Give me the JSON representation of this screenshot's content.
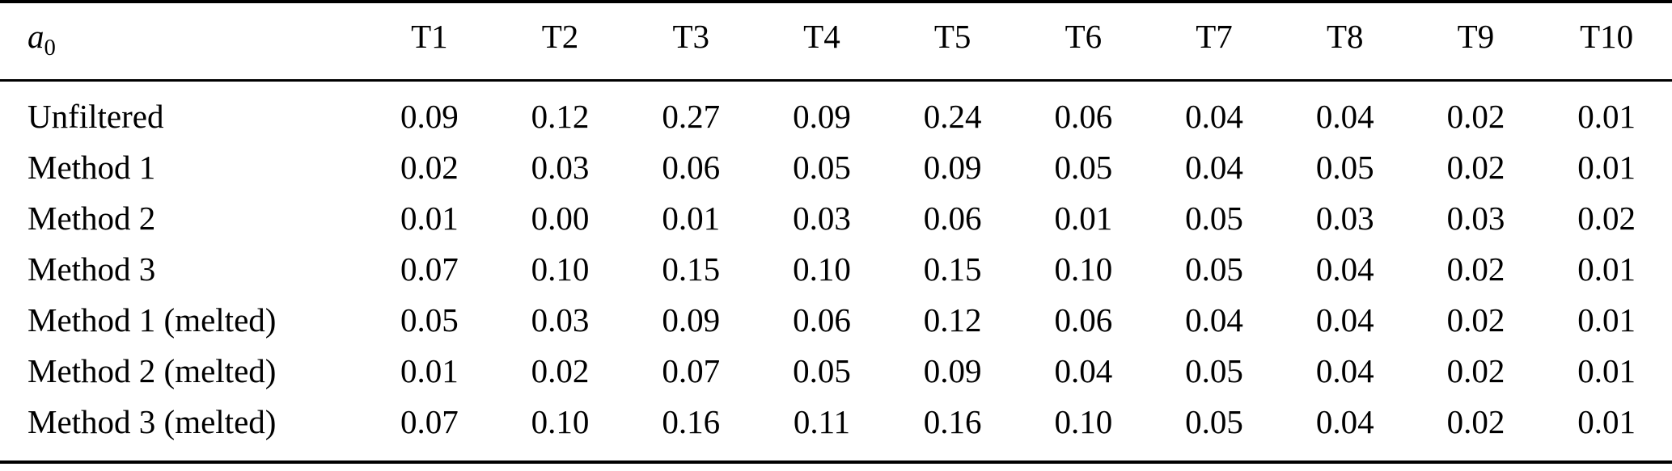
{
  "page": {
    "background_color": "#ffffff",
    "text_color": "#000000",
    "rule_color": "#000000"
  },
  "table": {
    "row_header": {
      "base": "a",
      "subscript": "0"
    },
    "columns": [
      "T1",
      "T2",
      "T3",
      "T4",
      "T5",
      "T6",
      "T7",
      "T8",
      "T9",
      "T10"
    ],
    "rows": [
      {
        "label": "Unfiltered",
        "values": [
          "0.09",
          "0.12",
          "0.27",
          "0.09",
          "0.24",
          "0.06",
          "0.04",
          "0.04",
          "0.02",
          "0.01"
        ]
      },
      {
        "label": "Method 1",
        "values": [
          "0.02",
          "0.03",
          "0.06",
          "0.05",
          "0.09",
          "0.05",
          "0.04",
          "0.05",
          "0.02",
          "0.01"
        ]
      },
      {
        "label": "Method 2",
        "values": [
          "0.01",
          "0.00",
          "0.01",
          "0.03",
          "0.06",
          "0.01",
          "0.05",
          "0.03",
          "0.03",
          "0.02"
        ]
      },
      {
        "label": "Method 3",
        "values": [
          "0.07",
          "0.10",
          "0.15",
          "0.10",
          "0.15",
          "0.10",
          "0.05",
          "0.04",
          "0.02",
          "0.01"
        ]
      },
      {
        "label": "Method 1 (melted)",
        "values": [
          "0.05",
          "0.03",
          "0.09",
          "0.06",
          "0.12",
          "0.06",
          "0.04",
          "0.04",
          "0.02",
          "0.01"
        ]
      },
      {
        "label": "Method 2 (melted)",
        "values": [
          "0.01",
          "0.02",
          "0.07",
          "0.05",
          "0.09",
          "0.04",
          "0.05",
          "0.04",
          "0.02",
          "0.01"
        ]
      },
      {
        "label": "Method 3 (melted)",
        "values": [
          "0.07",
          "0.10",
          "0.16",
          "0.11",
          "0.16",
          "0.10",
          "0.05",
          "0.04",
          "0.02",
          "0.01"
        ]
      }
    ]
  }
}
